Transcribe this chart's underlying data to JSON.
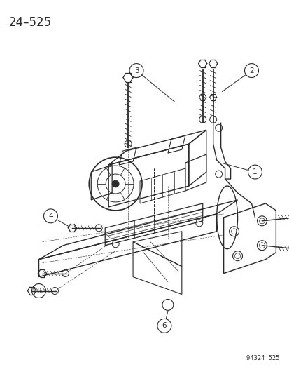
{
  "title": "24–525",
  "footer": "94324  525",
  "bg": "#ffffff",
  "lc": "#2a2a2a",
  "fig_w": 4.14,
  "fig_h": 5.33,
  "dpi": 100
}
